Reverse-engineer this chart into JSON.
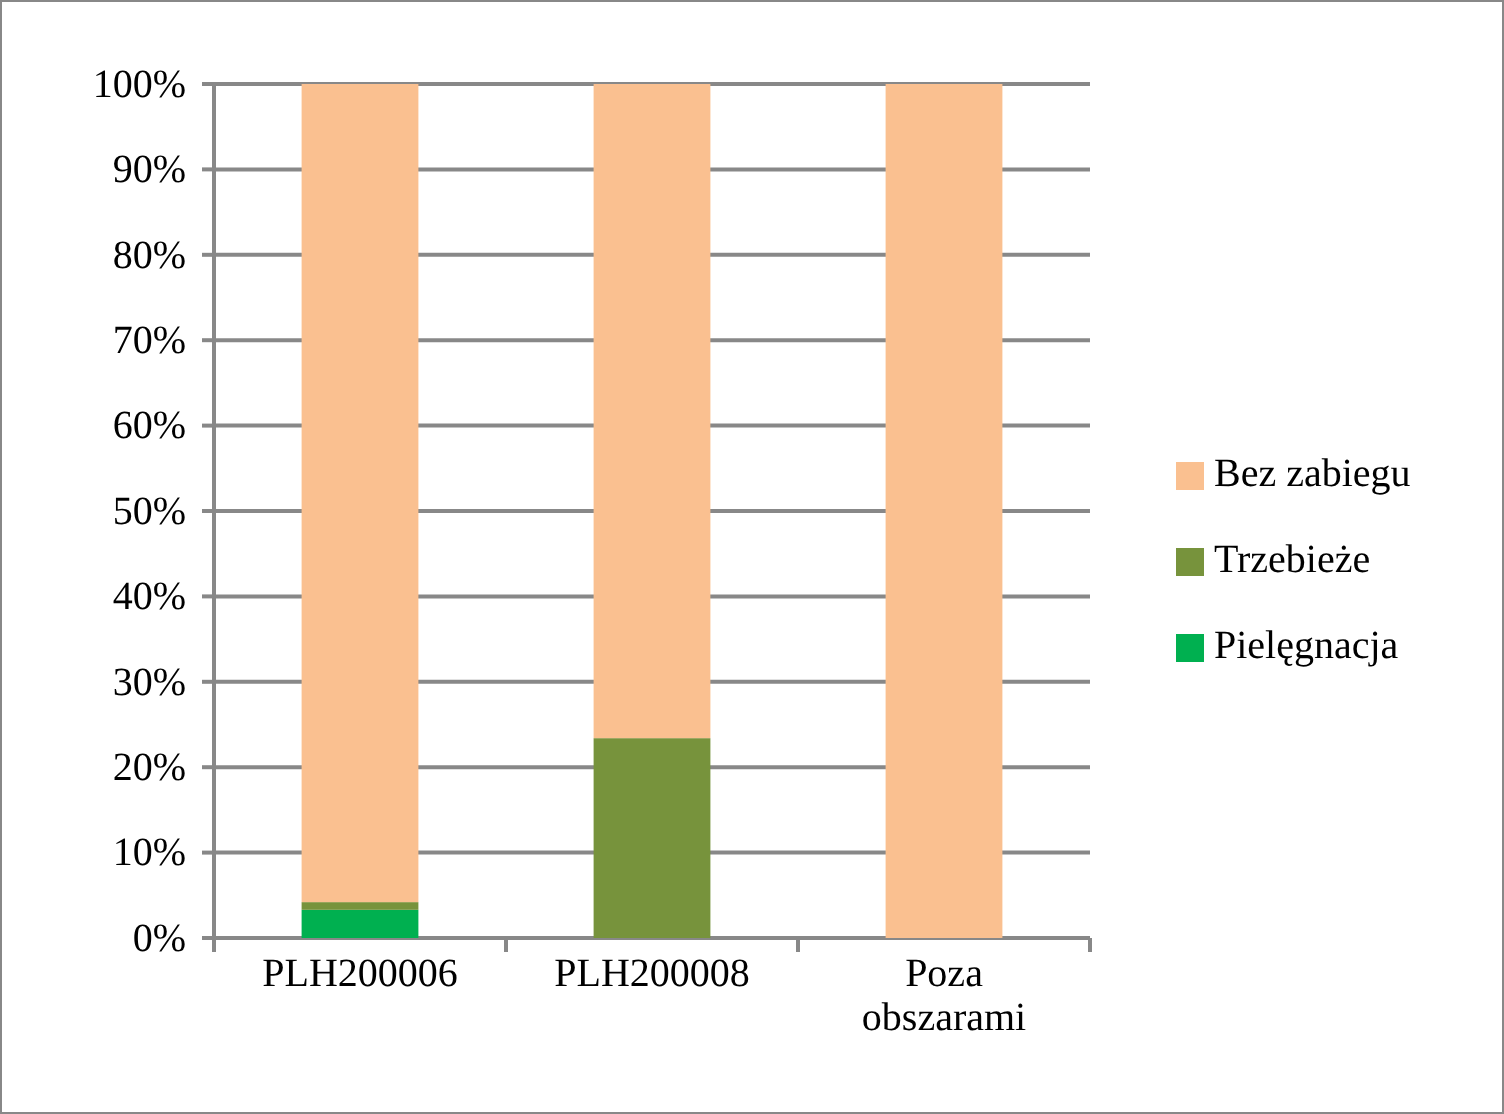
{
  "chart_data": {
    "type": "bar",
    "stacked": true,
    "categories": [
      "PLH200006",
      "PLH200008",
      "Poza obszarami"
    ],
    "series": [
      {
        "name": "Pielęgnacja",
        "color": "#00b050",
        "values": [
          3.3,
          0,
          0
        ]
      },
      {
        "name": "Trzebieże",
        "color": "#77933c",
        "values": [
          0.9,
          23.4,
          0
        ]
      },
      {
        "name": "Bez zabiegu",
        "color": "#fac090",
        "values": [
          95.8,
          76.6,
          100
        ]
      }
    ],
    "ylim": [
      0,
      100
    ],
    "yticks": [
      {
        "value": 0,
        "label": "0%"
      },
      {
        "value": 10,
        "label": "10%"
      },
      {
        "value": 20,
        "label": "20%"
      },
      {
        "value": 30,
        "label": "30%"
      },
      {
        "value": 40,
        "label": "40%"
      },
      {
        "value": 50,
        "label": "50%"
      },
      {
        "value": 60,
        "label": "60%"
      },
      {
        "value": 70,
        "label": "70%"
      },
      {
        "value": 80,
        "label": "80%"
      },
      {
        "value": 90,
        "label": "90%"
      },
      {
        "value": 100,
        "label": "100%"
      }
    ],
    "grid": "y",
    "legend": "right"
  }
}
